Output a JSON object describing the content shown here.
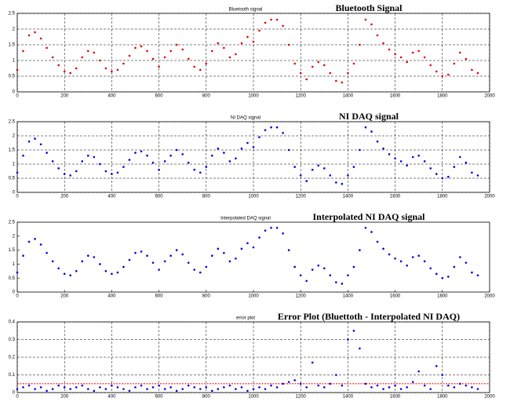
{
  "chart_data": [
    {
      "type": "scatter",
      "title": "Bluetooth signal",
      "annotation": "Bluetooth Signal",
      "xlim": [
        0,
        2000
      ],
      "xticks": [
        0,
        200,
        400,
        600,
        800,
        1000,
        1200,
        1400,
        1600,
        1800,
        2000
      ],
      "ylim": [
        0,
        2.5
      ],
      "yticks": [
        0,
        0.5,
        1,
        1.5,
        2,
        2.5
      ],
      "grid": true,
      "x": [
        0,
        25,
        50,
        75,
        100,
        125,
        150,
        175,
        200,
        225,
        250,
        275,
        300,
        325,
        350,
        375,
        400,
        425,
        450,
        475,
        500,
        525,
        550,
        575,
        600,
        625,
        650,
        675,
        700,
        725,
        750,
        775,
        800,
        825,
        850,
        875,
        900,
        925,
        950,
        975,
        1000,
        1025,
        1050,
        1075,
        1100,
        1125,
        1150,
        1175,
        1200,
        1225,
        1250,
        1275,
        1300,
        1325,
        1350,
        1375,
        1400,
        1425,
        1450,
        1475,
        1500,
        1525,
        1550,
        1575,
        1600,
        1625,
        1650,
        1675,
        1700,
        1725,
        1750,
        1775,
        1800,
        1825,
        1850,
        1875,
        1900,
        1925,
        1950
      ],
      "series": [
        {
          "color": "#e00000",
          "values": [
            0.7,
            1.3,
            1.8,
            1.9,
            1.7,
            1.4,
            1.1,
            0.85,
            0.65,
            0.6,
            0.75,
            1.1,
            1.3,
            1.25,
            1.0,
            0.75,
            0.65,
            0.7,
            0.9,
            1.15,
            1.4,
            1.45,
            1.3,
            1.05,
            0.8,
            1.1,
            1.3,
            1.5,
            1.35,
            1.05,
            0.8,
            0.7,
            0.9,
            1.3,
            1.55,
            1.4,
            1.1,
            1.2,
            1.55,
            1.75,
            1.6,
            1.95,
            2.2,
            2.3,
            2.3,
            2.1,
            1.5,
            0.9,
            0.6,
            0.4,
            0.8,
            0.95,
            0.85,
            0.6,
            0.35,
            0.3,
            0.6,
            0.9,
            1.5,
            2.3,
            2.15,
            1.8,
            1.55,
            1.35,
            1.2,
            1.1,
            0.95,
            1.25,
            1.3,
            1.1,
            0.85,
            0.65,
            0.5,
            0.55,
            0.9,
            1.25,
            1.05,
            0.7,
            0.6
          ]
        }
      ]
    },
    {
      "type": "scatter",
      "title": "NI DAQ signal",
      "annotation": "NI DAQ signal",
      "xlim": [
        0,
        2000
      ],
      "xticks": [
        0,
        200,
        400,
        600,
        800,
        1000,
        1200,
        1400,
        1600,
        1800,
        2000
      ],
      "ylim": [
        0,
        2.5
      ],
      "yticks": [
        0,
        0.5,
        1,
        1.5,
        2,
        2.5
      ],
      "grid": true,
      "x": [
        0,
        25,
        50,
        75,
        100,
        125,
        150,
        175,
        200,
        225,
        250,
        275,
        300,
        325,
        350,
        375,
        400,
        425,
        450,
        475,
        500,
        525,
        550,
        575,
        600,
        625,
        650,
        675,
        700,
        725,
        750,
        775,
        800,
        825,
        850,
        875,
        900,
        925,
        950,
        975,
        1000,
        1025,
        1050,
        1075,
        1100,
        1125,
        1150,
        1175,
        1200,
        1225,
        1250,
        1275,
        1300,
        1325,
        1350,
        1375,
        1400,
        1425,
        1450,
        1475,
        1500,
        1525,
        1550,
        1575,
        1600,
        1625,
        1650,
        1675,
        1700,
        1725,
        1750,
        1775,
        1800,
        1825,
        1850,
        1875,
        1900,
        1925,
        1950
      ],
      "series": [
        {
          "color": "#0000e0",
          "values": [
            0.7,
            1.3,
            1.8,
            1.9,
            1.7,
            1.4,
            1.1,
            0.85,
            0.65,
            0.6,
            0.75,
            1.1,
            1.3,
            1.25,
            1.0,
            0.75,
            0.65,
            0.7,
            0.9,
            1.15,
            1.4,
            1.45,
            1.3,
            1.05,
            0.8,
            1.1,
            1.3,
            1.5,
            1.35,
            1.05,
            0.8,
            0.7,
            0.9,
            1.3,
            1.55,
            1.4,
            1.1,
            1.2,
            1.55,
            1.75,
            1.6,
            1.95,
            2.2,
            2.3,
            2.3,
            2.1,
            1.5,
            0.9,
            0.6,
            0.4,
            0.8,
            0.95,
            0.85,
            0.6,
            0.35,
            0.3,
            0.6,
            0.9,
            1.5,
            2.3,
            2.15,
            1.8,
            1.55,
            1.35,
            1.2,
            1.1,
            0.95,
            1.25,
            1.3,
            1.1,
            0.85,
            0.65,
            0.5,
            0.55,
            0.9,
            1.25,
            1.05,
            0.7,
            0.6
          ]
        }
      ]
    },
    {
      "type": "scatter",
      "title": "Interpolated DAQ signal",
      "annotation": "Interpolated NI DAQ signal",
      "xlim": [
        0,
        2000
      ],
      "xticks": [
        0,
        200,
        400,
        600,
        800,
        1000,
        1200,
        1400,
        1600,
        1800,
        2000
      ],
      "ylim": [
        0,
        2.5
      ],
      "yticks": [
        0,
        0.5,
        1,
        1.5,
        2,
        2.5
      ],
      "grid": false,
      "x": [
        0,
        25,
        50,
        75,
        100,
        125,
        150,
        175,
        200,
        225,
        250,
        275,
        300,
        325,
        350,
        375,
        400,
        425,
        450,
        475,
        500,
        525,
        550,
        575,
        600,
        625,
        650,
        675,
        700,
        725,
        750,
        775,
        800,
        825,
        850,
        875,
        900,
        925,
        950,
        975,
        1000,
        1025,
        1050,
        1075,
        1100,
        1125,
        1150,
        1175,
        1200,
        1225,
        1250,
        1275,
        1300,
        1325,
        1350,
        1375,
        1400,
        1425,
        1450,
        1475,
        1500,
        1525,
        1550,
        1575,
        1600,
        1625,
        1650,
        1675,
        1700,
        1725,
        1750,
        1775,
        1800,
        1825,
        1850,
        1875,
        1900,
        1925,
        1950
      ],
      "series": [
        {
          "color": "#0000e0",
          "values": [
            0.7,
            1.3,
            1.8,
            1.9,
            1.7,
            1.4,
            1.1,
            0.85,
            0.65,
            0.6,
            0.75,
            1.1,
            1.3,
            1.25,
            1.0,
            0.75,
            0.65,
            0.7,
            0.9,
            1.15,
            1.4,
            1.45,
            1.3,
            1.05,
            0.8,
            1.1,
            1.3,
            1.5,
            1.35,
            1.05,
            0.8,
            0.7,
            0.9,
            1.3,
            1.55,
            1.4,
            1.1,
            1.2,
            1.55,
            1.75,
            1.6,
            1.95,
            2.2,
            2.3,
            2.3,
            2.1,
            1.5,
            0.9,
            0.6,
            0.4,
            0.8,
            0.95,
            0.85,
            0.6,
            0.35,
            0.3,
            0.6,
            0.9,
            1.5,
            2.3,
            2.15,
            1.8,
            1.55,
            1.35,
            1.2,
            1.1,
            0.95,
            1.25,
            1.3,
            1.1,
            0.85,
            0.65,
            0.5,
            0.55,
            0.9,
            1.25,
            1.05,
            0.7,
            0.6
          ]
        }
      ]
    },
    {
      "type": "scatter",
      "title": "error plot",
      "annotation": "Error Plot (Bluettoth - Interpolated NI DAQ)",
      "xlim": [
        0,
        2000
      ],
      "xticks": [
        0,
        200,
        400,
        600,
        800,
        1000,
        1200,
        1400,
        1600,
        1800,
        2000
      ],
      "ylim": [
        0,
        0.4
      ],
      "yticks": [
        0,
        0.1,
        0.2,
        0.3,
        0.4
      ],
      "grid": true,
      "reference_line": {
        "value": 0.05,
        "color": "#ff0000"
      },
      "x": [
        0,
        25,
        50,
        75,
        100,
        125,
        150,
        175,
        200,
        225,
        250,
        275,
        300,
        325,
        350,
        375,
        400,
        425,
        450,
        475,
        500,
        525,
        550,
        575,
        600,
        625,
        650,
        675,
        700,
        725,
        750,
        775,
        800,
        825,
        850,
        875,
        900,
        925,
        950,
        975,
        1000,
        1025,
        1050,
        1075,
        1100,
        1125,
        1150,
        1175,
        1200,
        1225,
        1250,
        1275,
        1300,
        1325,
        1350,
        1375,
        1400,
        1425,
        1450,
        1475,
        1500,
        1525,
        1550,
        1575,
        1600,
        1625,
        1650,
        1675,
        1700,
        1725,
        1750,
        1775,
        1800,
        1825,
        1850,
        1875,
        1900,
        1925,
        1950
      ],
      "series": [
        {
          "color": "#0000e0",
          "values": [
            0.02,
            0.03,
            0.04,
            0.02,
            0.03,
            0.01,
            0.02,
            0.04,
            0.03,
            0.02,
            0.03,
            0.04,
            0.02,
            0.01,
            0.03,
            0.02,
            0.04,
            0.03,
            0.02,
            0.01,
            0.03,
            0.04,
            0.02,
            0.03,
            0.04,
            0.02,
            0.03,
            0.01,
            0.02,
            0.04,
            0.03,
            0.02,
            0.03,
            0.01,
            0.02,
            0.03,
            0.04,
            0.02,
            0.03,
            0.01,
            0.02,
            0.03,
            0.02,
            0.04,
            0.03,
            0.05,
            0.06,
            0.07,
            0.05,
            0.03,
            0.17,
            0.04,
            0.03,
            0.05,
            0.1,
            0.04,
            0.3,
            0.35,
            0.25,
            0.05,
            0.03,
            0.04,
            0.02,
            0.03,
            0.04,
            0.02,
            0.03,
            0.06,
            0.12,
            0.04,
            0.02,
            0.15,
            0.1,
            0.04,
            0.03,
            0.05,
            0.04,
            0.03,
            0.02
          ]
        }
      ]
    }
  ]
}
